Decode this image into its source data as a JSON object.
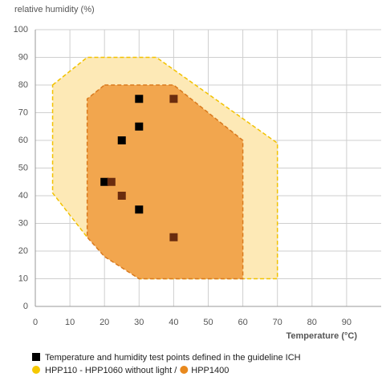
{
  "chart_data": {
    "type": "scatter",
    "ylabel": "relative humidity (%)",
    "xlabel": "Temperature (°C)",
    "xlim": [
      0,
      100
    ],
    "ylim": [
      0,
      100
    ],
    "xticks": [
      0,
      10,
      20,
      30,
      40,
      50,
      60,
      70,
      80,
      90
    ],
    "yticks": [
      0,
      10,
      20,
      30,
      40,
      50,
      60,
      70,
      80,
      90,
      100
    ],
    "grid": true,
    "series": [
      {
        "name": "HPP110 - HPP1060 without light /",
        "kind": "area",
        "color": "#fde9b6",
        "edge": "#f2c200",
        "x": [
          5,
          15,
          35,
          70,
          70,
          30,
          15,
          5
        ],
        "values": [
          80,
          90,
          90,
          59,
          10,
          10,
          25,
          41
        ]
      },
      {
        "name": "HPP1400",
        "kind": "area",
        "color": "#f2a64e",
        "edge": "#d97a1e",
        "x": [
          20,
          40,
          60,
          60,
          30,
          20,
          15,
          15
        ],
        "values": [
          80,
          80,
          60,
          10,
          10,
          18,
          25,
          75
        ]
      },
      {
        "name": "Temperature and humidity test points defined in the guideline ICH",
        "kind": "points",
        "color": "#000000",
        "x": [
          30,
          30,
          25,
          20,
          30
        ],
        "values": [
          75,
          65,
          60,
          45,
          35
        ]
      },
      {
        "kind": "points",
        "color": "#6b2c0e",
        "x": [
          40,
          22,
          25,
          40
        ],
        "values": [
          75,
          45,
          40,
          25
        ]
      }
    ]
  }
}
